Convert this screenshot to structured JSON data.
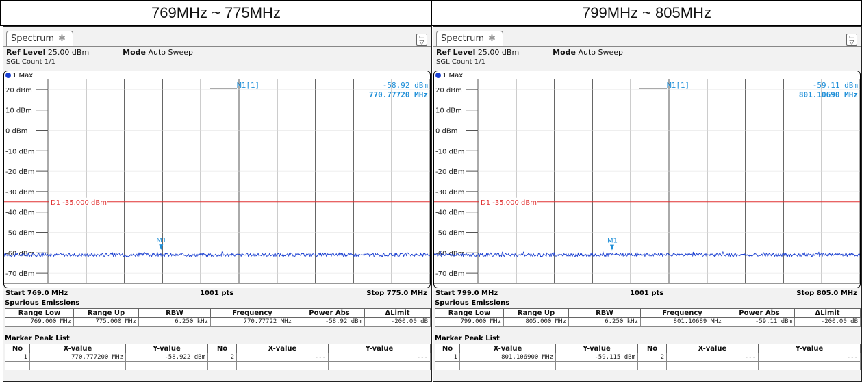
{
  "headers": [
    "769MHz ~ 775MHz",
    "799MHz ~ 805MHz"
  ],
  "panels": [
    {
      "tab_label": "Spectrum",
      "ref_level_label": "Ref Level",
      "ref_level_value": "25.00 dBm",
      "mode_label": "Mode",
      "mode_value": "Auto Sweep",
      "sgl_count": "SGL Count 1/1",
      "trace_label": "1 Max",
      "marker_name": "M1[1]",
      "marker_level": "-58.92 dBm",
      "marker_freq": "770.77720 MHz",
      "marker_tag": "M1",
      "limit_label": "D1 -35.000 dBm",
      "start": "Start 769.0 MHz",
      "pts": "1001 pts",
      "stop": "Stop 775.0 MHz",
      "spurious_title": "Spurious Emissions",
      "spurious_headers": [
        "Range Low",
        "Range Up",
        "RBW",
        "Frequency",
        "Power Abs",
        "ΔLimit"
      ],
      "spurious_row": [
        "769.000 MHz",
        "775.000 MHz",
        "6.250 kHz",
        "770.77722 MHz",
        "-58.92 dBm",
        "-200.00 dB"
      ],
      "peak_title": "Marker Peak List",
      "peak_headers": [
        "No",
        "X-value",
        "Y-value",
        "No",
        "X-value",
        "Y-value"
      ],
      "peak_row": [
        "1",
        "770.777200 MHz",
        "-58.922 dBm",
        "2",
        "---",
        "---"
      ]
    },
    {
      "tab_label": "Spectrum",
      "ref_level_label": "Ref Level",
      "ref_level_value": "25.00 dBm",
      "mode_label": "Mode",
      "mode_value": "Auto Sweep",
      "sgl_count": "SGL Count 1/1",
      "trace_label": "1 Max",
      "marker_name": "M1[1]",
      "marker_level": "-59.11 dBm",
      "marker_freq": "801.10690 MHz",
      "marker_tag": "M1",
      "limit_label": "D1 -35.000 dBm",
      "start": "Start 799.0 MHz",
      "pts": "1001 pts",
      "stop": "Stop 805.0 MHz",
      "spurious_title": "Spurious Emissions",
      "spurious_headers": [
        "Range Low",
        "Range Up",
        "RBW",
        "Frequency",
        "Power Abs",
        "ΔLimit"
      ],
      "spurious_row": [
        "799.000 MHz",
        "805.000 MHz",
        "6.250 kHz",
        "801.10689 MHz",
        "-59.11 dBm",
        "-200.00 dB"
      ],
      "peak_title": "Marker Peak List",
      "peak_headers": [
        "No",
        "X-value",
        "Y-value",
        "No",
        "X-value",
        "Y-value"
      ],
      "peak_row": [
        "1",
        "801.106900 MHz",
        "-59.115 dBm",
        "2",
        "---",
        "---"
      ]
    }
  ],
  "chart_data": [
    {
      "type": "line",
      "series": [
        {
          "name": "1 Max",
          "noise_floor_dbm": -61.0,
          "color": "#1a3fd1"
        }
      ],
      "x_range_mhz": [
        769.0,
        775.0
      ],
      "ylim": [
        -75,
        25
      ],
      "y_tick_labels": [
        "20 dBm",
        "10 dBm",
        "0 dBm",
        "-10 dBm",
        "-20 dBm",
        "-30 dBm",
        "-40 dBm",
        "-50 dBm",
        "-60 dBm",
        "-70 dBm"
      ],
      "limit_line": {
        "value_dbm": -35.0,
        "color": "#e03030"
      },
      "marker": {
        "x_mhz": 770.7772,
        "y_dbm": -58.92,
        "color": "#1f8fd8"
      },
      "grid": true
    },
    {
      "type": "line",
      "series": [
        {
          "name": "1 Max",
          "noise_floor_dbm": -61.0,
          "color": "#1a3fd1"
        }
      ],
      "x_range_mhz": [
        799.0,
        805.0
      ],
      "ylim": [
        -75,
        25
      ],
      "y_tick_labels": [
        "20 dBm",
        "10 dBm",
        "0 dBm",
        "-10 dBm",
        "-20 dBm",
        "-30 dBm",
        "-40 dBm",
        "-50 dBm",
        "-60 dBm",
        "-70 dBm"
      ],
      "limit_line": {
        "value_dbm": -35.0,
        "color": "#e03030"
      },
      "marker": {
        "x_mhz": 801.1069,
        "y_dbm": -59.11,
        "color": "#1f8fd8"
      },
      "grid": true
    }
  ]
}
